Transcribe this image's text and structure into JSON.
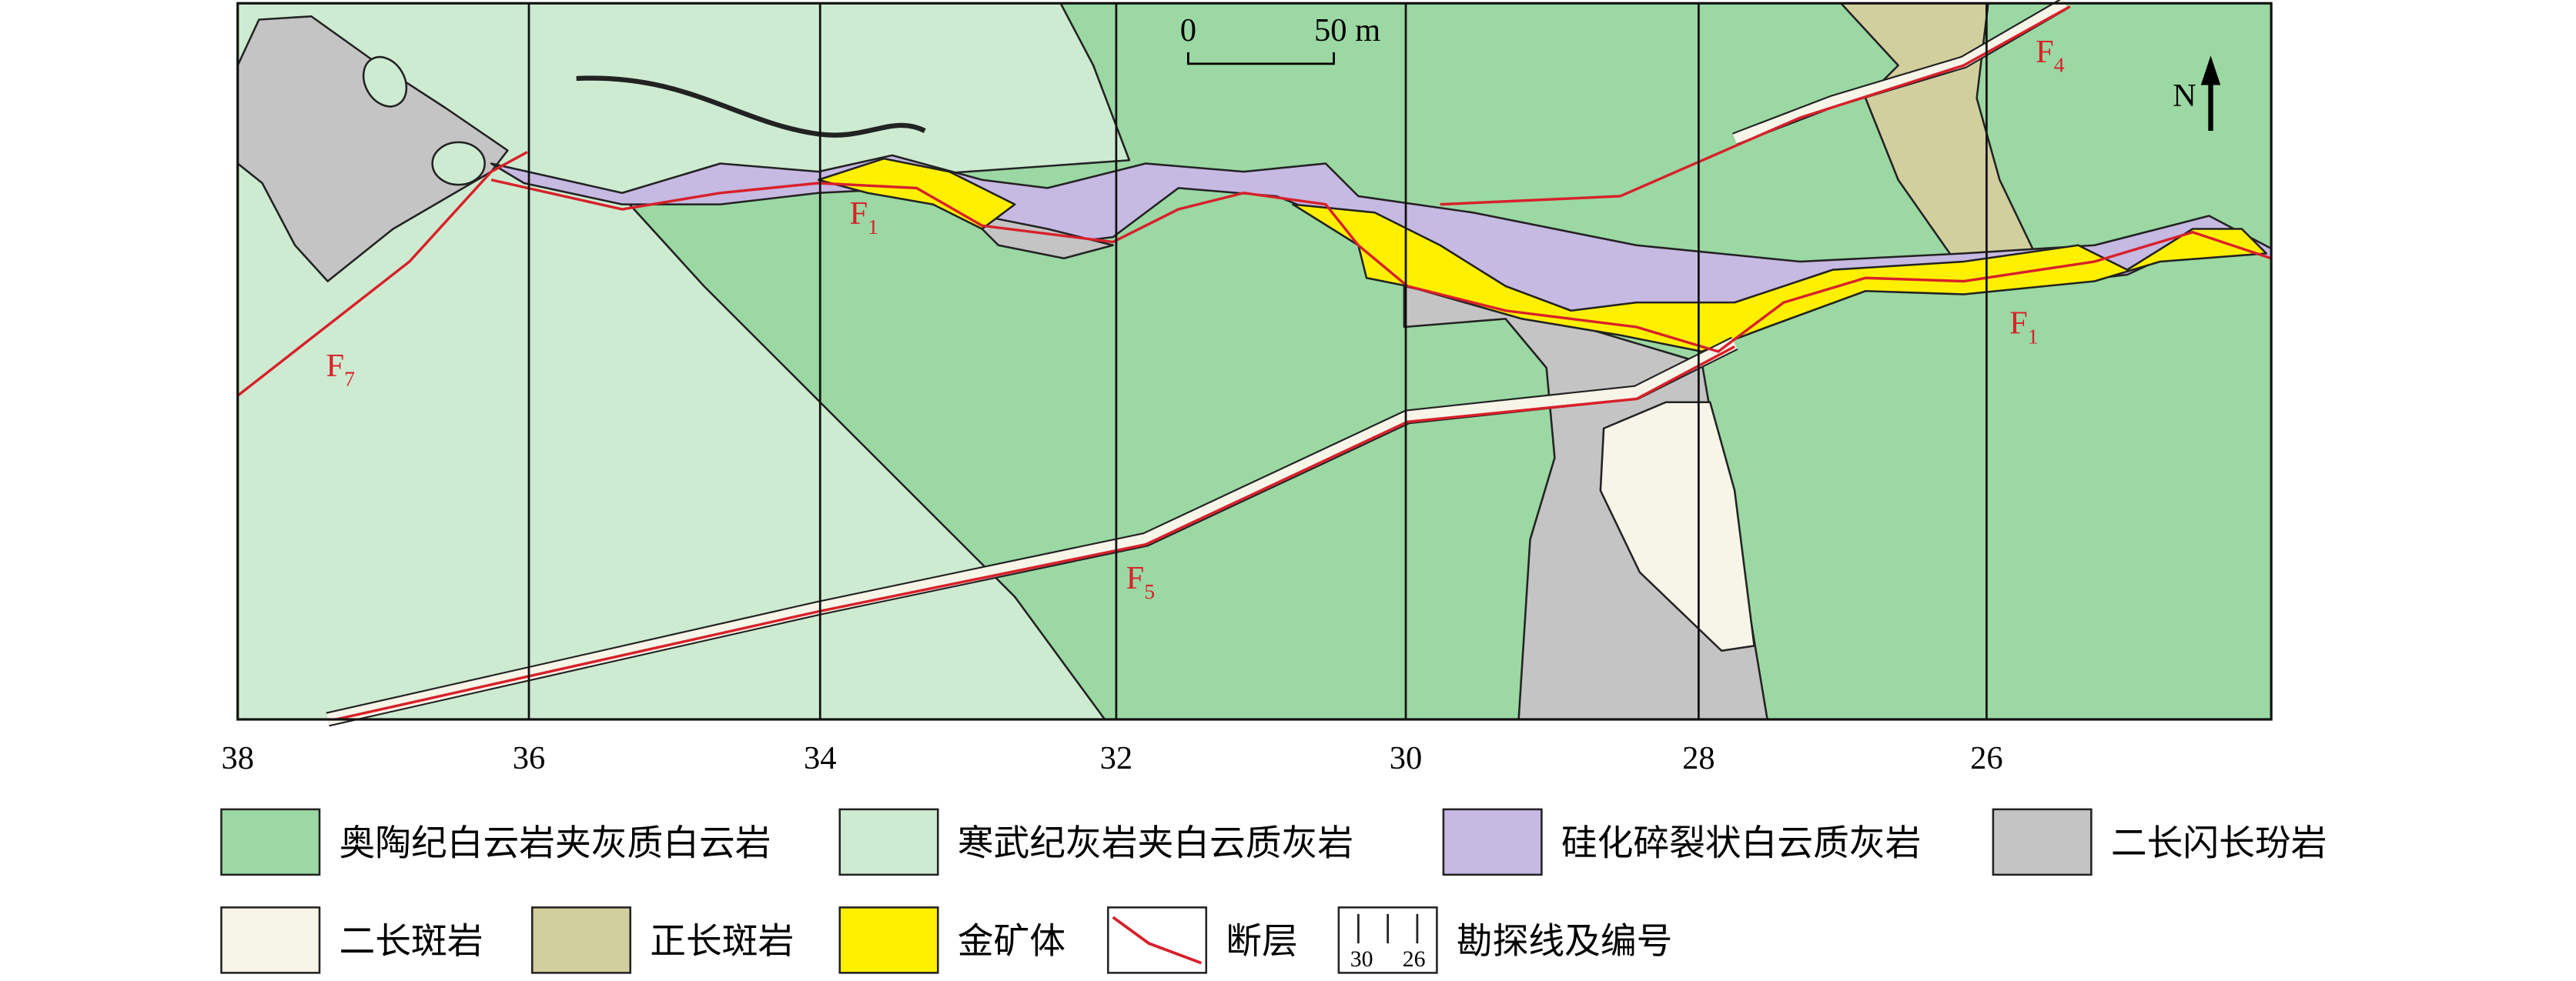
{
  "scale_bar": {
    "start": "0",
    "end": "50 m"
  },
  "north": "N",
  "fault_labels": [
    {
      "letter": "F",
      "sub": "1"
    },
    {
      "letter": "F",
      "sub": "1"
    },
    {
      "letter": "F",
      "sub": "4"
    },
    {
      "letter": "F",
      "sub": "5"
    },
    {
      "letter": "F",
      "sub": "7"
    }
  ],
  "line_numbers": [
    "38",
    "36",
    "34",
    "32",
    "30",
    "28",
    "26"
  ],
  "legend": [
    {
      "label": "奥陶纪白云岩夹灰质白云岩",
      "color": "#9bd8a3"
    },
    {
      "label": "寒武纪灰岩夹白云质灰岩",
      "color": "#cdebd1"
    },
    {
      "label": "硅化碎裂状白云质灰岩",
      "color": "#c6b9e2"
    },
    {
      "label": "二长闪长玢岩",
      "color": "#c4c4c4"
    },
    {
      "label": "二长斑岩",
      "color": "#f7f4e8"
    },
    {
      "label": "正长斑岩",
      "color": "#d2cf9e"
    },
    {
      "label": "金矿体",
      "color": "#fff000"
    },
    {
      "label": "断层",
      "color": "#d8202a"
    },
    {
      "label": "勘探线及编号",
      "icon_numbers": [
        "30",
        "26"
      ]
    }
  ]
}
